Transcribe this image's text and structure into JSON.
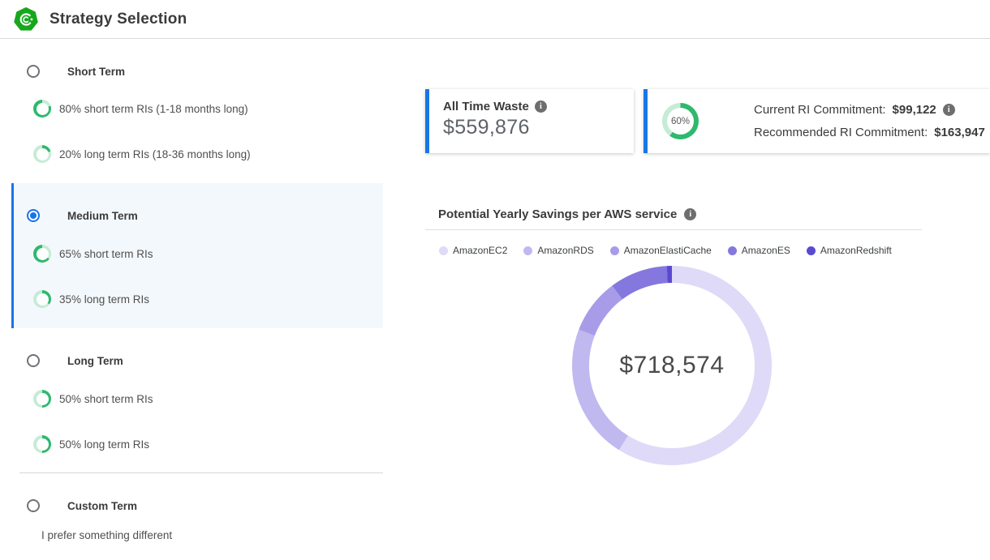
{
  "header": {
    "title": "Strategy Selection"
  },
  "colors": {
    "accent_blue": "#1a73e8",
    "green_dark": "#2eb96e",
    "green_light": "#c6ebd6",
    "selected_bg": "#f3f8fc",
    "logo_green": "#17a71d",
    "info_gray": "#6e6e6e"
  },
  "strategies": {
    "short": {
      "label": "Short Term",
      "selected": false,
      "items": [
        {
          "pct": 80,
          "label": "80% short term RIs (1-18 months long)"
        },
        {
          "pct": 20,
          "label": "20% long term RIs (18-36 months long)"
        }
      ]
    },
    "medium": {
      "label": "Medium Term",
      "selected": true,
      "items": [
        {
          "pct": 65,
          "label": "65% short term RIs"
        },
        {
          "pct": 35,
          "label": "35% long term RIs"
        }
      ]
    },
    "long": {
      "label": "Long Term",
      "selected": false,
      "items": [
        {
          "pct": 50,
          "label": "50% short term RIs"
        },
        {
          "pct": 50,
          "label": "50% long term RIs"
        }
      ]
    },
    "custom": {
      "label": "Custom Term",
      "selected": false,
      "subtitle": "I prefer something different"
    }
  },
  "waste_card": {
    "title": "All Time Waste",
    "value": "$559,876"
  },
  "commitment_card": {
    "pct": 60,
    "pct_label": "60%",
    "lines": [
      {
        "label": "Current RI Commitment:",
        "value": "$99,122"
      },
      {
        "label": "Recommended RI Commitment:",
        "value": "$163,947"
      }
    ]
  },
  "chart_data": {
    "type": "pie",
    "variant": "donut",
    "title": "Potential Yearly Savings per AWS service",
    "center_label": "$718,574",
    "total": 718574,
    "legend_position": "top",
    "values_are_estimated_from_arc_angles": true,
    "segments": [
      {
        "label": "AmazonEC2",
        "percent": 58.9,
        "color": "#dedaf7"
      },
      {
        "label": "AmazonRDS",
        "percent": 22.0,
        "color": "#c0b9f0"
      },
      {
        "label": "AmazonElastiCache",
        "percent": 8.9,
        "color": "#a89ce9"
      },
      {
        "label": "AmazonES",
        "percent": 9.4,
        "color": "#8477de"
      },
      {
        "label": "AmazonRedshift",
        "percent": 0.8,
        "color": "#5a49d2"
      }
    ]
  }
}
